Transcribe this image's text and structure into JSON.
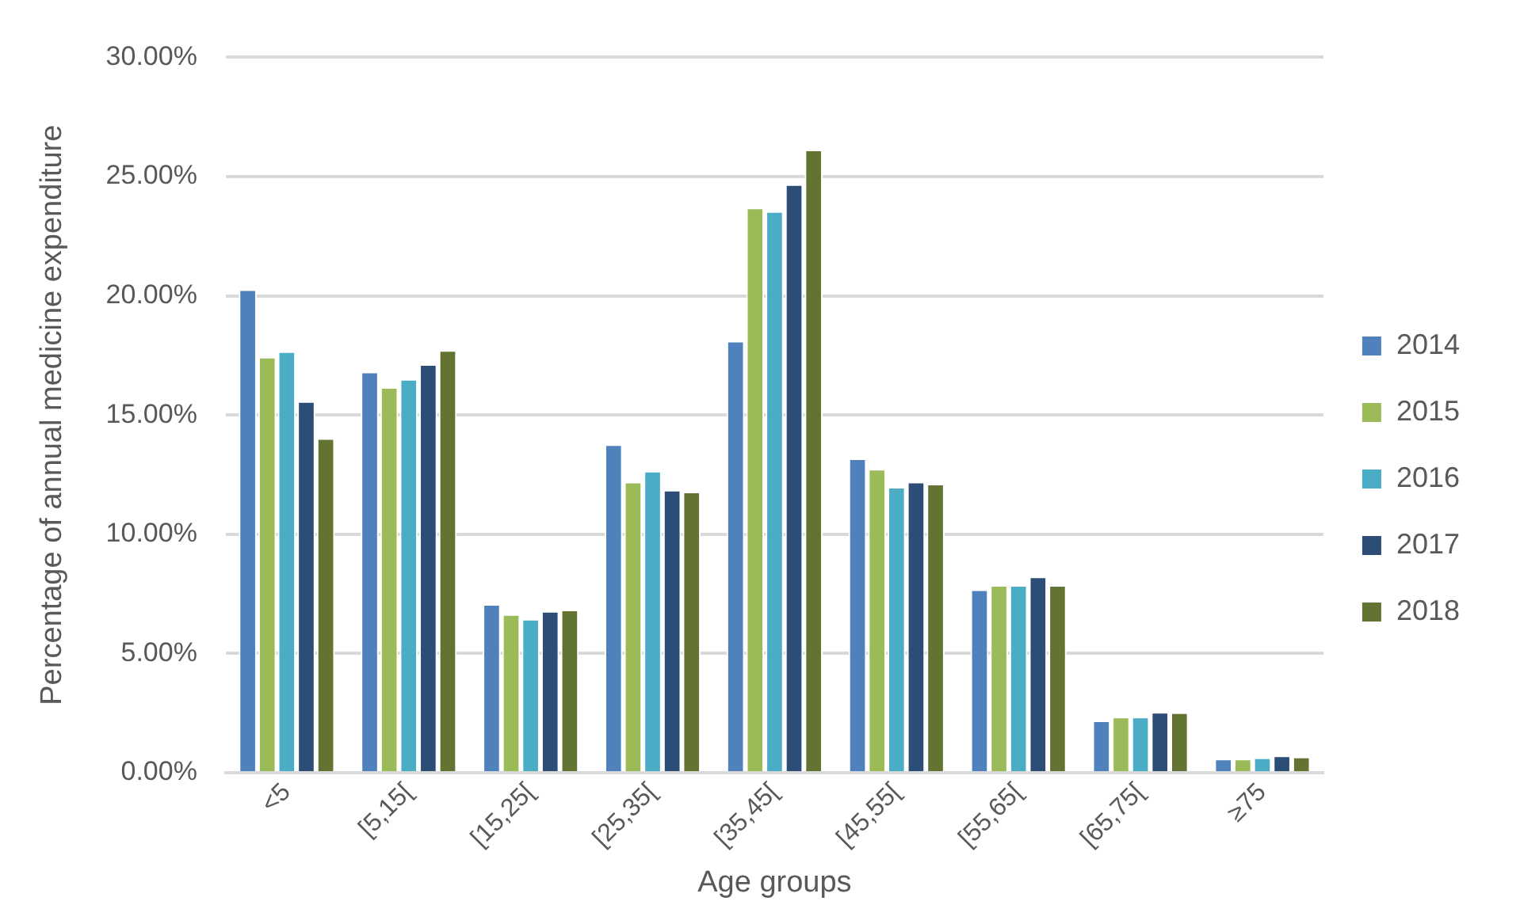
{
  "chart_data": {
    "type": "bar",
    "xlabel": "Age groups",
    "ylabel": "Percentage of annual medicine expenditure",
    "categories": [
      "<5",
      "[5,15[",
      "[15,25[",
      "[25,35[",
      "[35,45[",
      "[45,55[",
      "[55,65[",
      "[65,75[",
      "≥75"
    ],
    "series": [
      {
        "name": "2014",
        "color": "#4f81bd",
        "values": [
          20.27,
          16.82,
          7.07,
          13.77,
          18.11,
          13.18,
          7.69,
          2.19,
          0.59
        ]
      },
      {
        "name": "2015",
        "color": "#9bbb59",
        "values": [
          17.44,
          16.17,
          6.65,
          12.2,
          23.7,
          12.74,
          7.87,
          2.35,
          0.59
        ]
      },
      {
        "name": "2016",
        "color": "#4bacc6",
        "values": [
          17.67,
          16.51,
          6.45,
          12.66,
          23.55,
          11.99,
          7.87,
          2.35,
          0.64
        ]
      },
      {
        "name": "2017",
        "color": "#2c4d75",
        "values": [
          15.58,
          17.13,
          6.78,
          11.86,
          24.68,
          12.2,
          8.23,
          2.55,
          0.72
        ]
      },
      {
        "name": "2018",
        "color": "#637432",
        "values": [
          14.03,
          17.72,
          6.84,
          11.79,
          26.13,
          12.12,
          7.87,
          2.53,
          0.67
        ]
      }
    ],
    "ylim": [
      0,
      30
    ],
    "yticks": [
      {
        "value": 0,
        "label": "0.00%"
      },
      {
        "value": 5,
        "label": "5.00%"
      },
      {
        "value": 10,
        "label": "10.00%"
      },
      {
        "value": 15,
        "label": "15.00%"
      },
      {
        "value": 20,
        "label": "20.00%"
      },
      {
        "value": 25,
        "label": "25.00%"
      },
      {
        "value": 30,
        "label": "30.00%"
      }
    ],
    "grid": "y",
    "legend": "right"
  }
}
